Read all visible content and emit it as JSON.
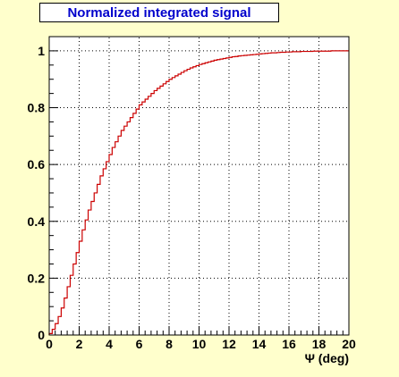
{
  "colors": {
    "background": "#ffffcc",
    "frame": "#ffffff",
    "title_text": "#0000cc",
    "line": "#cc0000",
    "grid": "#000000"
  },
  "chart_data": {
    "type": "line",
    "style": "step",
    "title": "Normalized integrated signal",
    "xlabel": "Ψ (deg)",
    "ylabel": "",
    "xlim": [
      0,
      20
    ],
    "ylim": [
      0,
      1.05
    ],
    "grid": true,
    "legend": "none",
    "x_ticks": [
      "0",
      "2",
      "4",
      "6",
      "8",
      "10",
      "12",
      "14",
      "16",
      "18",
      "20"
    ],
    "y_ticks": [
      "0",
      "0.2",
      "0.4",
      "0.6",
      "0.8",
      "1"
    ],
    "bin_width": 0.2,
    "series": [
      {
        "values": [
          0.005,
          0.02,
          0.04,
          0.065,
          0.095,
          0.13,
          0.17,
          0.21,
          0.25,
          0.29,
          0.33,
          0.37,
          0.405,
          0.44,
          0.47,
          0.5,
          0.53,
          0.56,
          0.585,
          0.61,
          0.635,
          0.66,
          0.68,
          0.7,
          0.72,
          0.735,
          0.75,
          0.765,
          0.78,
          0.795,
          0.81,
          0.82,
          0.83,
          0.84,
          0.85,
          0.86,
          0.868,
          0.876,
          0.884,
          0.892,
          0.9,
          0.906,
          0.912,
          0.918,
          0.924,
          0.93,
          0.935,
          0.94,
          0.944,
          0.948,
          0.952,
          0.955,
          0.958,
          0.961,
          0.964,
          0.967,
          0.969,
          0.971,
          0.973,
          0.975,
          0.977,
          0.979,
          0.98,
          0.982,
          0.983,
          0.984,
          0.985,
          0.986,
          0.987,
          0.988,
          0.989,
          0.99,
          0.991,
          0.992,
          0.993,
          0.993,
          0.994,
          0.995,
          0.995,
          0.996,
          0.996,
          0.997,
          0.997,
          0.997,
          0.998,
          0.998,
          0.998,
          0.998,
          0.999,
          0.999,
          0.999,
          0.999,
          0.999,
          0.999,
          1.0,
          1.0,
          1.0,
          1.0,
          1.0,
          1.0
        ]
      }
    ]
  }
}
